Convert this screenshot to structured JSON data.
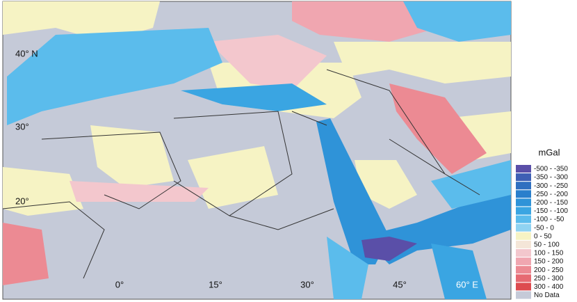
{
  "map": {
    "lat_labels": [
      "40° N",
      "30°",
      "20°"
    ],
    "lon_labels": [
      "0°",
      "15°",
      "30°",
      "45°",
      "60° E"
    ]
  },
  "legend": {
    "title": "mGal",
    "items": [
      {
        "label": "-500 - -350",
        "color": "#5a4fa8"
      },
      {
        "label": "-350 - -300",
        "color": "#3e5fb4"
      },
      {
        "label": "-300 - -250",
        "color": "#2f6fc0"
      },
      {
        "label": "-250 - -200",
        "color": "#2a7fcc"
      },
      {
        "label": "-200 - -150",
        "color": "#2f93d8"
      },
      {
        "label": "-150 - -100",
        "color": "#3aa5e2"
      },
      {
        "label": "-100 - -50",
        "color": "#5bbcec"
      },
      {
        "label": "-50 - 0",
        "color": "#8fd3f2"
      },
      {
        "label": "0 - 50",
        "color": "#f6f3c4"
      },
      {
        "label": "50 - 100",
        "color": "#f4e6d8"
      },
      {
        "label": "100 - 150",
        "color": "#f3c7cd"
      },
      {
        "label": "150 - 200",
        "color": "#f0a6b0"
      },
      {
        "label": "200 - 250",
        "color": "#ec8a93"
      },
      {
        "label": "250 - 300",
        "color": "#e66a72"
      },
      {
        "label": "300 - 400",
        "color": "#dd4b4f"
      },
      {
        "label": "No Data",
        "color": "#c5cad8"
      }
    ]
  }
}
